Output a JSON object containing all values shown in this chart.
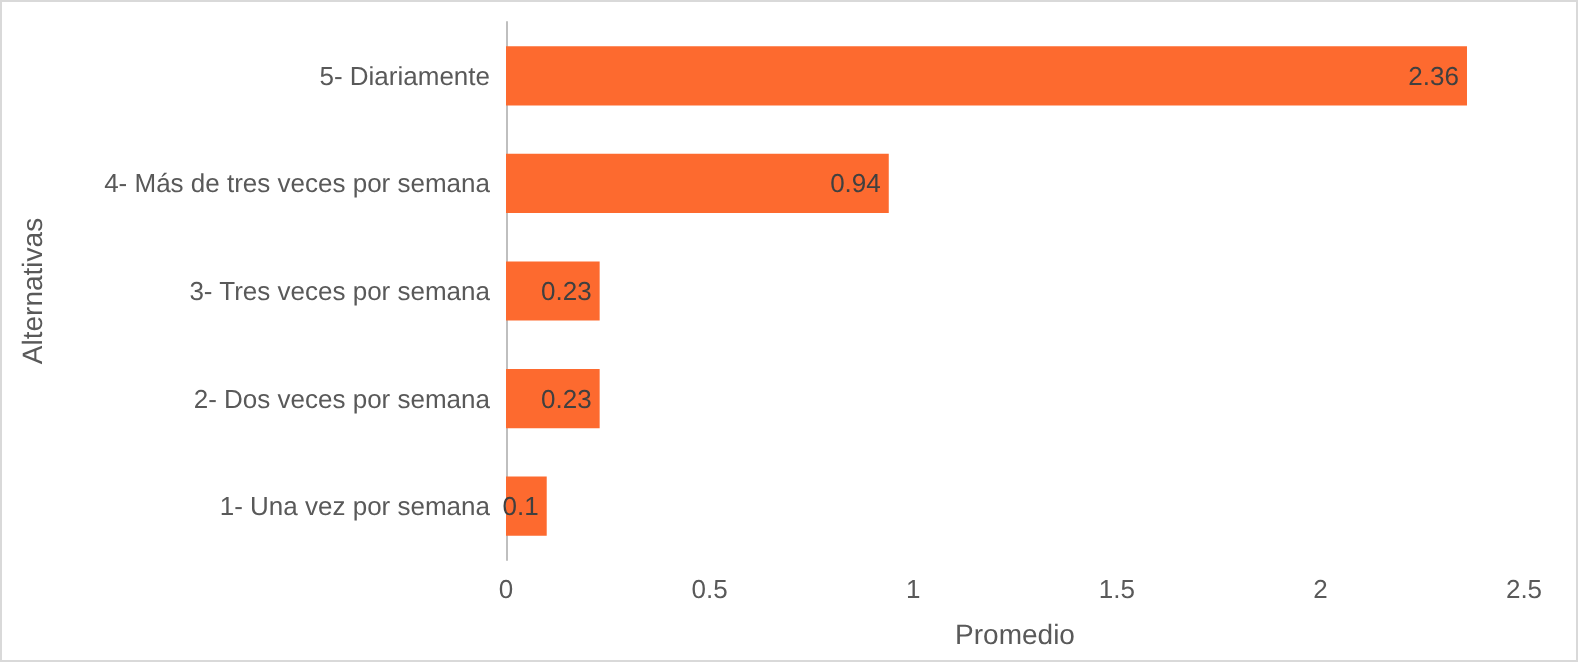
{
  "chart_data": {
    "type": "bar",
    "orientation": "horizontal",
    "categories": [
      "5- Diariamente",
      "4- Más de tres veces por semana",
      "3- Tres veces por semana",
      "2- Dos veces por semana",
      "1- Una vez por semana"
    ],
    "values": [
      2.36,
      0.94,
      0.23,
      0.23,
      0.1
    ],
    "color": "#fd6a2f",
    "xlim": [
      0,
      2.5
    ],
    "xticks": [
      0,
      0.5,
      1,
      1.5,
      2,
      2.5
    ],
    "xlabel": "Promedio",
    "ylabel": "Alternativas",
    "data_labels": true,
    "grid": false
  }
}
